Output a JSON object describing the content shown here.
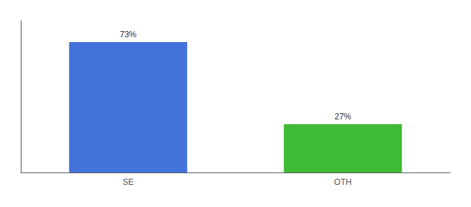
{
  "chart_data": {
    "type": "bar",
    "categories": [
      "SE",
      "OTH"
    ],
    "values": [
      73,
      27
    ],
    "value_labels": [
      "73%",
      "27%"
    ],
    "colors": [
      "#4472db",
      "#3dbb35"
    ],
    "ylim": [
      0,
      85
    ],
    "grid": false,
    "data_labels": true,
    "tick_labels": "x"
  }
}
